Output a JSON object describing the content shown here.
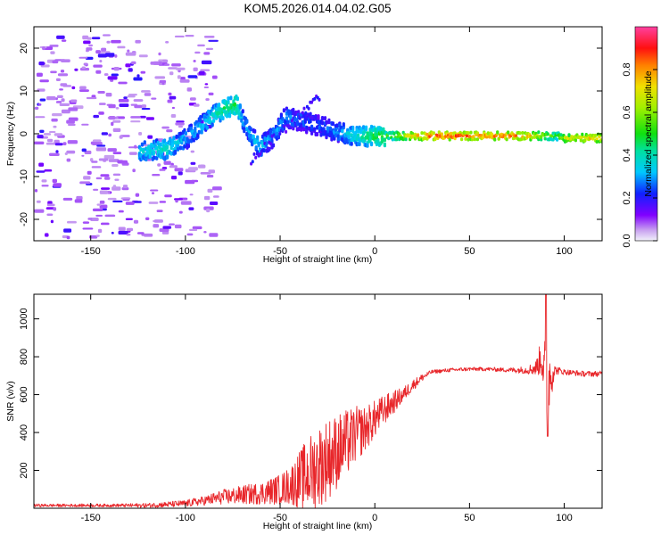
{
  "title": "KOM5.2026.014.04.02.G05",
  "colors": {
    "snr_line": "#e8262a",
    "axis": "#000000",
    "spec_ridge_core": "#d81b1b"
  },
  "chart_data": [
    {
      "type": "heatmap",
      "title": "KOM5.2026.014.04.02.G05",
      "xlabel": "Height of straight line (km)",
      "ylabel": "Frequency (Hz)",
      "xlim": [
        -180,
        120
      ],
      "ylim": [
        -25,
        25
      ],
      "xticks": [
        -150,
        -100,
        -50,
        0,
        50,
        100
      ],
      "yticks": [
        -20,
        -10,
        0,
        10,
        20
      ],
      "xtick_labels": [
        "-150",
        "-100",
        "-50",
        "0",
        "50",
        "100"
      ],
      "ytick_labels": [
        "-20",
        "-10",
        "0",
        "10",
        "20"
      ],
      "ridge": {
        "x": [
          -125,
          -110,
          -100,
          -90,
          -80,
          -74,
          -70,
          -62,
          -55,
          -48,
          -40,
          -30,
          -20,
          -10,
          0,
          10,
          20,
          30,
          40,
          50,
          60,
          70,
          80,
          90,
          95,
          100,
          110,
          120
        ],
        "freq": [
          -4,
          -3.5,
          -1,
          3,
          6,
          7,
          3,
          -3,
          -1,
          4,
          3,
          2,
          0.5,
          -0.5,
          -0.5,
          -0.5,
          -0.5,
          -0.5,
          -0.5,
          -0.5,
          -0.5,
          -0.5,
          -0.5,
          -0.5,
          -0.5,
          -1,
          -1,
          -1
        ],
        "amplitude": [
          0.35,
          0.4,
          0.3,
          0.35,
          0.45,
          0.5,
          0.3,
          0.35,
          0.3,
          0.3,
          0.25,
          0.25,
          0.3,
          0.4,
          0.5,
          0.6,
          0.75,
          0.9,
          0.9,
          0.85,
          0.85,
          0.85,
          0.8,
          0.6,
          0.5,
          0.7,
          0.75,
          0.8
        ]
      },
      "colorbar": {
        "label": "Normalized spectral amplitude",
        "range": [
          0,
          1
        ],
        "ticks": [
          0.0,
          0.2,
          0.4,
          0.6,
          0.8
        ],
        "tick_labels": [
          "0.0",
          "0.2",
          "0.4",
          "0.6",
          "0.8"
        ]
      }
    },
    {
      "type": "line",
      "xlabel": "Height of straight line (km)",
      "ylabel": "SNR (v/v)",
      "xlim": [
        -180,
        120
      ],
      "ylim": [
        0,
        1130
      ],
      "xticks": [
        -150,
        -100,
        -50,
        0,
        50,
        100
      ],
      "yticks": [
        200,
        400,
        600,
        800,
        1000
      ],
      "xtick_labels": [
        "-150",
        "-100",
        "-50",
        "0",
        "50",
        "100"
      ],
      "ytick_labels": [
        "200",
        "400",
        "600",
        "800",
        "1000"
      ],
      "series": [
        {
          "name": "SNR",
          "x": [
            -180,
            -160,
            -140,
            -120,
            -110,
            -100,
            -90,
            -80,
            -70,
            -60,
            -50,
            -45,
            -40,
            -35,
            -30,
            -25,
            -20,
            -15,
            -10,
            -5,
            0,
            5,
            10,
            15,
            20,
            25,
            30,
            40,
            50,
            60,
            70,
            80,
            85,
            88,
            90,
            91,
            92,
            95,
            100,
            110,
            120
          ],
          "base": [
            15,
            15,
            15,
            15,
            20,
            25,
            40,
            60,
            70,
            80,
            100,
            120,
            150,
            180,
            220,
            260,
            300,
            340,
            390,
            420,
            470,
            520,
            560,
            600,
            650,
            690,
            720,
            730,
            735,
            735,
            730,
            730,
            740,
            800,
            700,
            400,
            700,
            730,
            720,
            710,
            710
          ],
          "noise": [
            8,
            8,
            8,
            12,
            15,
            18,
            25,
            40,
            50,
            60,
            80,
            100,
            150,
            200,
            220,
            220,
            200,
            180,
            150,
            120,
            100,
            80,
            60,
            40,
            30,
            20,
            10,
            10,
            10,
            10,
            12,
            20,
            40,
            100,
            200,
            150,
            200,
            25,
            15,
            15,
            15
          ],
          "peak_value": 1130,
          "dip_value": 380
        }
      ]
    }
  ]
}
